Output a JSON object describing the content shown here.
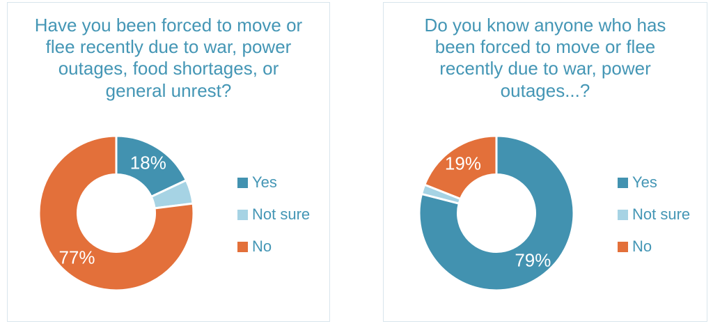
{
  "style": {
    "accent_text_color": "#4496b5",
    "data_label_color": "#ffffff",
    "card_border_color": "#d8e5ec",
    "slice_color_yes": "#4292b0",
    "slice_color_not_sure": "#a6d3e4",
    "slice_color_no": "#e3703a"
  },
  "chart_data": [
    {
      "type": "pie",
      "subtype": "donut",
      "title": "Have you been forced to move or flee recently due to war, power outages, food shortages, or general unrest?",
      "categories": [
        "Yes",
        "Not sure",
        "No"
      ],
      "values": [
        18,
        5,
        77
      ],
      "data_labels": [
        "18%",
        "",
        "77%"
      ],
      "colors": [
        "#4292b0",
        "#a6d3e4",
        "#e3703a"
      ],
      "hole_ratio": 0.5,
      "start_angle_deg": 0,
      "direction": "clockwise",
      "legend_position": "right"
    },
    {
      "type": "pie",
      "subtype": "donut",
      "title": "Do you know anyone who has been forced to move or flee recently due to war, power outages...?",
      "categories": [
        "Yes",
        "Not sure",
        "No"
      ],
      "values": [
        79,
        2,
        19
      ],
      "data_labels": [
        "79%",
        "",
        "19%"
      ],
      "colors": [
        "#4292b0",
        "#a6d3e4",
        "#e3703a"
      ],
      "hole_ratio": 0.5,
      "start_angle_deg": 0,
      "direction": "clockwise",
      "legend_position": "right"
    }
  ]
}
